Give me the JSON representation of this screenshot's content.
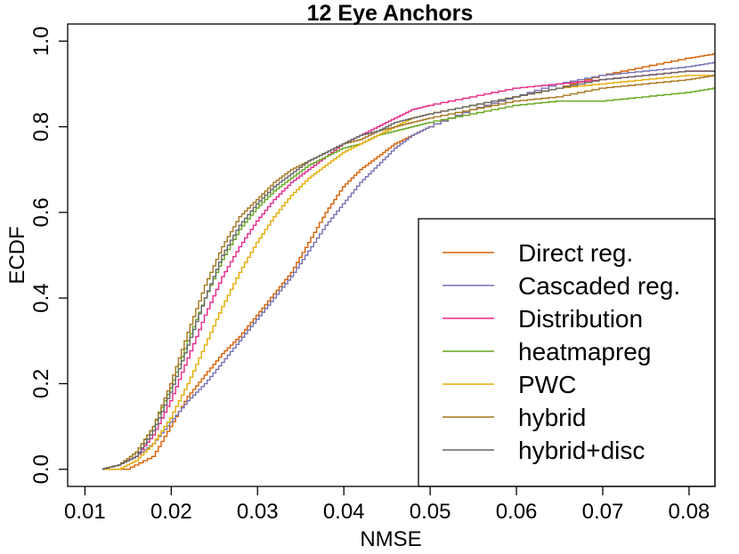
{
  "chart_data": {
    "type": "line",
    "title": "12 Eye Anchors",
    "xlabel": "NMSE",
    "ylabel": "ECDF",
    "xlim": [
      0.008,
      0.083
    ],
    "ylim": [
      -0.04,
      1.04
    ],
    "x_ticks": [
      0.01,
      0.02,
      0.03,
      0.04,
      0.05,
      0.06,
      0.07,
      0.08
    ],
    "x_tick_labels": [
      "0.01",
      "0.02",
      "0.03",
      "0.04",
      "0.05",
      "0.06",
      "0.07",
      "0.08"
    ],
    "y_ticks": [
      0.0,
      0.2,
      0.4,
      0.6,
      0.8,
      1.0
    ],
    "y_tick_labels": [
      "0.0",
      "0.2",
      "0.4",
      "0.6",
      "0.8",
      "1.0"
    ],
    "grid": false,
    "legend_position": "bottom-right",
    "series": [
      {
        "name": "Direct reg.",
        "color": "#D95F02",
        "x": [
          0.012,
          0.015,
          0.018,
          0.02,
          0.022,
          0.024,
          0.026,
          0.028,
          0.03,
          0.032,
          0.034,
          0.036,
          0.038,
          0.04,
          0.042,
          0.044,
          0.046,
          0.048,
          0.05,
          0.055,
          0.06,
          0.065,
          0.07,
          0.075,
          0.08,
          0.083
        ],
        "y": [
          0.0,
          0.0,
          0.03,
          0.1,
          0.17,
          0.22,
          0.27,
          0.31,
          0.36,
          0.41,
          0.46,
          0.53,
          0.6,
          0.66,
          0.7,
          0.73,
          0.76,
          0.78,
          0.8,
          0.84,
          0.87,
          0.89,
          0.92,
          0.94,
          0.96,
          0.97
        ]
      },
      {
        "name": "Cascaded reg.",
        "color": "#7570B3",
        "x": [
          0.012,
          0.014,
          0.016,
          0.018,
          0.02,
          0.022,
          0.024,
          0.026,
          0.028,
          0.03,
          0.032,
          0.034,
          0.036,
          0.038,
          0.04,
          0.042,
          0.044,
          0.046,
          0.048,
          0.05,
          0.055,
          0.06,
          0.065,
          0.07,
          0.075,
          0.08,
          0.083
        ],
        "y": [
          0.0,
          0.01,
          0.03,
          0.06,
          0.11,
          0.16,
          0.2,
          0.25,
          0.3,
          0.35,
          0.4,
          0.45,
          0.51,
          0.57,
          0.62,
          0.67,
          0.71,
          0.75,
          0.78,
          0.8,
          0.84,
          0.87,
          0.9,
          0.92,
          0.93,
          0.94,
          0.95
        ]
      },
      {
        "name": "Distribution",
        "color": "#E7298A",
        "x": [
          0.012,
          0.014,
          0.016,
          0.018,
          0.02,
          0.022,
          0.024,
          0.026,
          0.028,
          0.03,
          0.032,
          0.034,
          0.036,
          0.038,
          0.04,
          0.042,
          0.044,
          0.046,
          0.048,
          0.05,
          0.055,
          0.06,
          0.065,
          0.07,
          0.075,
          0.08,
          0.083
        ],
        "y": [
          0.0,
          0.01,
          0.03,
          0.08,
          0.16,
          0.26,
          0.36,
          0.45,
          0.52,
          0.58,
          0.63,
          0.67,
          0.7,
          0.73,
          0.76,
          0.78,
          0.8,
          0.82,
          0.84,
          0.85,
          0.87,
          0.89,
          0.9,
          0.91,
          0.92,
          0.93,
          0.93
        ]
      },
      {
        "name": "heatmapreg",
        "color": "#66A61E",
        "x": [
          0.012,
          0.014,
          0.016,
          0.018,
          0.02,
          0.022,
          0.024,
          0.026,
          0.028,
          0.03,
          0.032,
          0.034,
          0.036,
          0.038,
          0.04,
          0.042,
          0.044,
          0.046,
          0.048,
          0.05,
          0.055,
          0.06,
          0.065,
          0.07,
          0.075,
          0.08,
          0.083
        ],
        "y": [
          0.0,
          0.01,
          0.04,
          0.1,
          0.19,
          0.3,
          0.4,
          0.49,
          0.56,
          0.61,
          0.65,
          0.68,
          0.71,
          0.73,
          0.75,
          0.76,
          0.78,
          0.79,
          0.8,
          0.81,
          0.83,
          0.85,
          0.86,
          0.86,
          0.87,
          0.88,
          0.89
        ]
      },
      {
        "name": "PWC",
        "color": "#E6AB02",
        "x": [
          0.012,
          0.014,
          0.016,
          0.018,
          0.02,
          0.022,
          0.024,
          0.026,
          0.028,
          0.03,
          0.032,
          0.034,
          0.036,
          0.038,
          0.04,
          0.042,
          0.044,
          0.046,
          0.048,
          0.05,
          0.055,
          0.06,
          0.065,
          0.07,
          0.075,
          0.08,
          0.083
        ],
        "y": [
          0.0,
          0.0,
          0.02,
          0.06,
          0.12,
          0.2,
          0.29,
          0.38,
          0.46,
          0.53,
          0.59,
          0.64,
          0.68,
          0.71,
          0.74,
          0.76,
          0.78,
          0.8,
          0.82,
          0.83,
          0.85,
          0.87,
          0.89,
          0.9,
          0.91,
          0.92,
          0.92
        ]
      },
      {
        "name": "hybrid",
        "color": "#A6761D",
        "x": [
          0.012,
          0.014,
          0.016,
          0.018,
          0.02,
          0.022,
          0.024,
          0.026,
          0.028,
          0.03,
          0.032,
          0.034,
          0.036,
          0.038,
          0.04,
          0.042,
          0.044,
          0.046,
          0.048,
          0.05,
          0.055,
          0.06,
          0.065,
          0.07,
          0.075,
          0.08,
          0.083
        ],
        "y": [
          0.0,
          0.01,
          0.04,
          0.1,
          0.2,
          0.32,
          0.43,
          0.52,
          0.59,
          0.63,
          0.67,
          0.7,
          0.72,
          0.74,
          0.76,
          0.77,
          0.79,
          0.8,
          0.81,
          0.82,
          0.84,
          0.86,
          0.87,
          0.89,
          0.9,
          0.91,
          0.92
        ]
      },
      {
        "name": "hybrid+disc",
        "color": "#666666",
        "x": [
          0.012,
          0.014,
          0.016,
          0.018,
          0.02,
          0.022,
          0.024,
          0.026,
          0.028,
          0.03,
          0.032,
          0.034,
          0.036,
          0.038,
          0.04,
          0.042,
          0.044,
          0.046,
          0.048,
          0.05,
          0.055,
          0.06,
          0.065,
          0.07,
          0.075,
          0.08,
          0.083
        ],
        "y": [
          0.0,
          0.01,
          0.03,
          0.09,
          0.18,
          0.29,
          0.4,
          0.5,
          0.57,
          0.62,
          0.66,
          0.69,
          0.72,
          0.74,
          0.76,
          0.78,
          0.79,
          0.81,
          0.82,
          0.83,
          0.85,
          0.87,
          0.89,
          0.91,
          0.92,
          0.93,
          0.93
        ]
      }
    ]
  }
}
